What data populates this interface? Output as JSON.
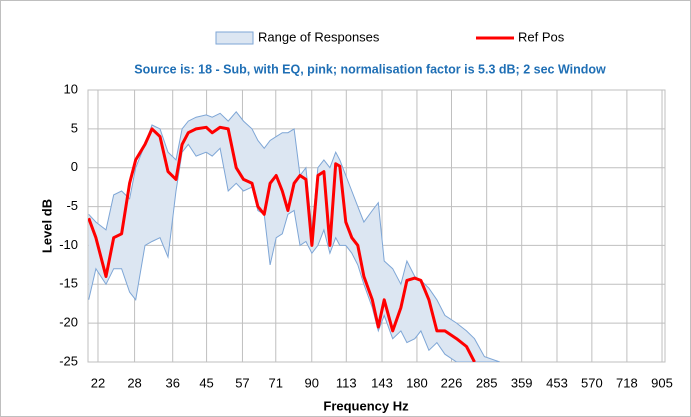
{
  "chart_data": {
    "type": "line",
    "subtitle": "Source is: 18 - Sub, with EQ, pink; normalisation  factor is 5.3 dB; 2 sec Window",
    "xlabel": "Frequency  Hz",
    "ylabel": "Level dB",
    "xscale": "log",
    "xlim": [
      20.6,
      923
    ],
    "xticks": [
      22,
      28,
      36,
      45,
      57,
      71,
      90,
      113,
      143,
      180,
      226,
      285,
      359,
      453,
      570,
      718,
      905
    ],
    "ylim": [
      -25,
      10
    ],
    "yticks": [
      -25,
      -20,
      -15,
      -10,
      -5,
      0,
      5,
      10
    ],
    "grid": true,
    "x": [
      20.7,
      21.7,
      23.2,
      24.4,
      25.7,
      27.1,
      28.2,
      30.0,
      31.4,
      33.1,
      34.9,
      36.8,
      38.3,
      39.9,
      42.0,
      44.9,
      46.7,
      49.2,
      51.9,
      54.7,
      57.4,
      60.7,
      63.1,
      65.8,
      68.4,
      71.2,
      74.1,
      76.9,
      80.1,
      83.3,
      86.6,
      90.1,
      93.7,
      97.5,
      101.4,
      105.4,
      108.3,
      112.6,
      117.2,
      121.9,
      126.9,
      134.1,
      139.5,
      145.1,
      153.4,
      161.9,
      168.5,
      177.5,
      184.7,
      194.7,
      205.3,
      216.4,
      233.8,
      249.6,
      263.0,
      280.8,
      311
    ],
    "band": {
      "name": "Range of Responses",
      "color": "#dce6f2",
      "edge_color": "#7ea6d6",
      "upper": [
        -6,
        -7,
        -8,
        -3.5,
        -3,
        -4,
        0,
        3,
        5.5,
        5,
        2,
        1,
        5,
        6,
        6.5,
        6.8,
        6.5,
        7,
        6,
        7.2,
        6,
        5,
        3.5,
        2.5,
        3.5,
        4,
        4.5,
        4.5,
        5,
        -1,
        0,
        -8,
        0,
        1,
        0,
        2,
        1,
        -1,
        -3,
        -5,
        -7,
        -5.5,
        -4.5,
        -12,
        -13,
        -15,
        -12,
        -14,
        -14.5,
        -15.5,
        -17,
        -19,
        -20,
        -21,
        -22,
        -24.3,
        -25
      ],
      "lower": [
        -17,
        -13,
        -15,
        -13,
        -13,
        -16,
        -17,
        -10,
        -9.5,
        -9,
        -11.5,
        -3,
        2,
        3,
        1.5,
        2,
        1.5,
        2.5,
        -3,
        -2,
        -3,
        -2.5,
        -5.5,
        -6,
        -12.5,
        -9,
        -8.5,
        -6,
        -5.5,
        -10,
        -9.5,
        -11,
        -10,
        -8,
        -11,
        -9,
        -10,
        -10,
        -11,
        -12.5,
        -15,
        -18,
        -21,
        -19,
        -22,
        -21,
        -22.5,
        -22,
        -21,
        -23.5,
        -22.5,
        -24,
        -25,
        -25,
        -25,
        -25,
        -25
      ]
    },
    "series": [
      {
        "name": "Ref Pos",
        "color": "#ff0000",
        "values": [
          -6.5,
          -9,
          -14,
          -9,
          -8.5,
          -2,
          1,
          3,
          5,
          4,
          -0.5,
          -1.5,
          3,
          4.5,
          5,
          5.2,
          4.5,
          5.2,
          5,
          0,
          -1.5,
          -2,
          -5,
          -6,
          -2,
          -1,
          -3,
          -5.5,
          -2,
          -1,
          -1.5,
          -10,
          -1,
          -0.5,
          -10,
          0.5,
          0.2,
          -7,
          -9,
          -10,
          -14,
          -17,
          -20.5,
          -17,
          -21,
          -18,
          -14.5,
          -14.2,
          -14.5,
          -17,
          -21,
          -21,
          -22,
          -23,
          -25,
          null,
          null
        ]
      }
    ]
  }
}
